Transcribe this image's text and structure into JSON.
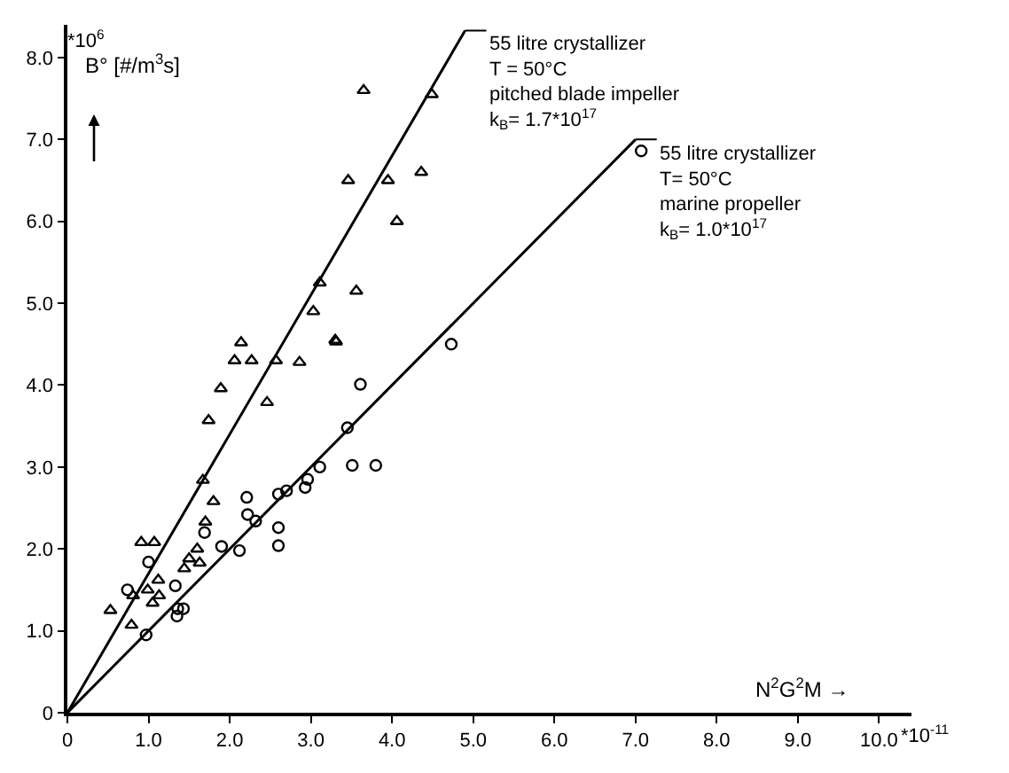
{
  "chart_data": {
    "type": "scatter",
    "xlabel": "N$^{2}$G$^{2}$M →",
    "ylabel": "B° [#/m$^{3}$s]",
    "xlim": [
      0,
      10.4
    ],
    "ylim": [
      0,
      8.4
    ],
    "xticks": [
      0,
      {
        "value": 1,
        "label": "1.0"
      },
      {
        "value": 2,
        "label": "2.0"
      },
      {
        "value": 3,
        "label": "3.0"
      },
      {
        "value": 4,
        "label": "4.0"
      },
      {
        "value": 5,
        "label": "5.0"
      },
      {
        "value": 6,
        "label": "6.0"
      },
      {
        "value": 7,
        "label": "7.0"
      },
      {
        "value": 8,
        "label": "8.0"
      },
      {
        "value": 9,
        "label": "9.0"
      },
      {
        "value": 10,
        "label": "10.0"
      }
    ],
    "yticks": [
      0,
      {
        "value": 1,
        "label": "1.0"
      },
      {
        "value": 2,
        "label": "2.0"
      },
      {
        "value": 3,
        "label": "3.0"
      },
      {
        "value": 4,
        "label": "4.0"
      },
      {
        "value": 5,
        "label": "5.0"
      },
      {
        "value": 6,
        "label": "6.0"
      },
      {
        "value": 7,
        "label": "7.0"
      },
      {
        "value": 8,
        "label": "8.0"
      }
    ],
    "series": [
      {
        "marker": "triangle",
        "color": "#000000",
        "x": [
          3.65,
          4.49,
          3.46,
          3.95,
          4.36,
          4.06,
          3.11,
          3.56,
          3.03,
          3.3,
          2.14,
          2.06,
          2.27,
          2.57,
          2.86,
          3.31,
          1.89,
          2.46,
          1.74,
          1.67,
          1.8,
          1.7,
          0.91,
          1.07,
          1.6,
          1.5,
          1.44,
          1.63,
          1.12,
          0.99,
          1.13,
          1.05,
          0.81,
          0.53,
          0.79
        ],
        "values": [
          7.6,
          7.55,
          6.5,
          6.5,
          6.6,
          6.0,
          5.25,
          5.15,
          4.9,
          4.55,
          4.52,
          4.3,
          4.3,
          4.3,
          4.28,
          4.53,
          3.96,
          3.79,
          3.57,
          2.84,
          2.58,
          2.33,
          2.08,
          2.08,
          2.0,
          1.88,
          1.76,
          1.83,
          1.62,
          1.5,
          1.43,
          1.34,
          1.43,
          1.25,
          1.07
        ]
      },
      {
        "marker": "circle",
        "color": "#000000",
        "x": [
          0.74,
          1.0,
          1.33,
          1.35,
          1.43,
          1.36,
          0.97,
          1.69,
          1.9,
          2.12,
          2.21,
          2.22,
          2.32,
          2.6,
          2.6,
          2.6,
          2.7,
          2.93,
          2.96,
          3.11,
          3.45,
          3.51,
          3.8,
          3.61,
          4.73,
          7.07
        ],
        "values": [
          1.5,
          1.84,
          1.55,
          1.18,
          1.27,
          1.27,
          0.95,
          2.2,
          2.03,
          1.98,
          2.63,
          2.42,
          2.34,
          2.67,
          2.26,
          2.04,
          2.71,
          2.75,
          2.85,
          3.0,
          3.48,
          3.02,
          3.02,
          4.01,
          4.5,
          6.86
        ]
      },
      {
        "type": "line",
        "line_style": "solid",
        "color": "#000000",
        "x": [
          0,
          4.9
        ],
        "values": [
          0,
          8.33
        ]
      },
      {
        "type": "line",
        "line_style": "solid",
        "color": "#000000",
        "x": [
          0,
          7.0
        ],
        "values": [
          0,
          7.0
        ]
      }
    ],
    "annotations": [
      "*10$^{-11}$",
      "*10$^{6}$",
      {
        "text": "55 litre crystallizer\nT = 50°C\npitched blade impeller\nk$_{B}$= 1.7*10$^{17}$",
        "x": 4.9,
        "y": 8.33
      },
      {
        "text": "55 litre crystallizer\nT= 50°C\nmarine propeller\nk$_{B}$= 1.0*10$^{17}$",
        "x": 7.0,
        "y": 7.0
      }
    ]
  }
}
